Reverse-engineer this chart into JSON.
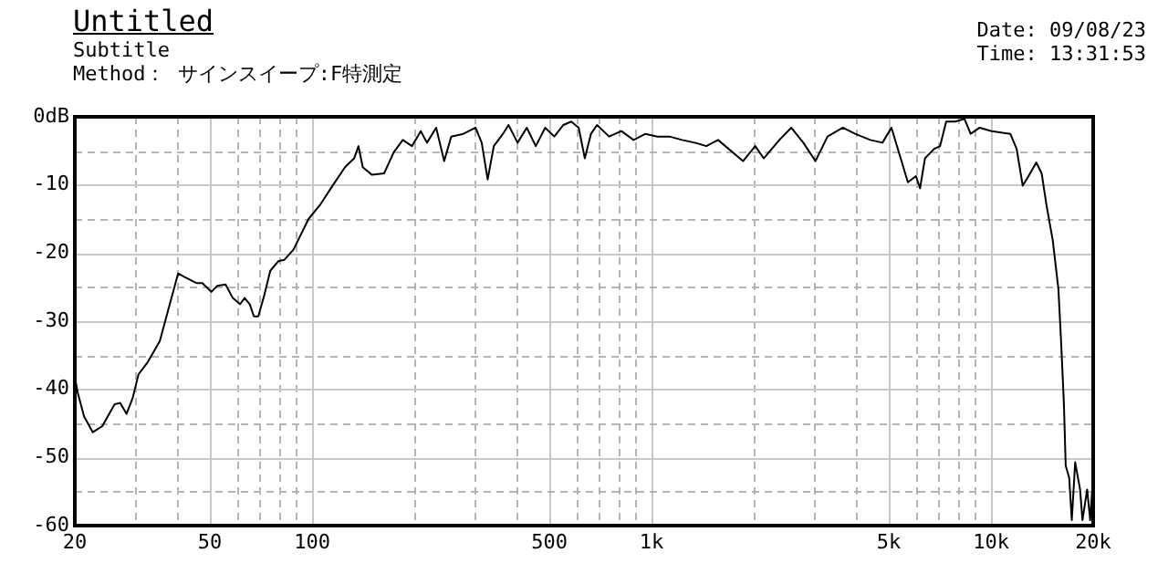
{
  "chart_data": {
    "type": "line",
    "title": "Untitled",
    "subtitle": "Subtitle",
    "annotations": [
      "Method： サインスイープ:F特測定",
      "Date: 09/08/23",
      "Time: 13:31:53"
    ],
    "log": "x",
    "grid": true,
    "legend": false,
    "marker": "none",
    "line_style": "solid",
    "xlim": [
      20,
      20000
    ],
    "xticks": [
      20,
      {
        "value": 30,
        "label": null
      },
      {
        "value": 40,
        "label": null
      },
      50,
      {
        "value": 60,
        "label": null
      },
      {
        "value": 70,
        "label": null
      },
      {
        "value": 80,
        "label": null
      },
      {
        "value": 90,
        "label": null
      },
      100,
      {
        "value": 200,
        "label": null
      },
      {
        "value": 300,
        "label": null
      },
      {
        "value": 400,
        "label": null
      },
      500,
      {
        "value": 600,
        "label": null
      },
      {
        "value": 700,
        "label": null
      },
      {
        "value": 800,
        "label": null
      },
      {
        "value": 900,
        "label": null
      },
      {
        "value": 1000,
        "label": "1k"
      },
      {
        "value": 2000,
        "label": null
      },
      {
        "value": 3000,
        "label": null
      },
      {
        "value": 4000,
        "label": null
      },
      {
        "value": 5000,
        "label": "5k"
      },
      {
        "value": 6000,
        "label": null
      },
      {
        "value": 7000,
        "label": null
      },
      {
        "value": 8000,
        "label": null
      },
      {
        "value": 9000,
        "label": null
      },
      {
        "value": 10000,
        "label": "10k"
      },
      {
        "value": 20000,
        "label": "20k"
      }
    ],
    "ylim": [
      -60,
      0
    ],
    "yticks": [
      {
        "value": 0,
        "label": "0dB"
      },
      {
        "value": -5,
        "label": null
      },
      -10,
      {
        "value": -15,
        "label": null
      },
      -20,
      {
        "value": -25,
        "label": null
      },
      -30,
      {
        "value": -35,
        "label": null
      },
      -40,
      {
        "value": -45,
        "label": null
      },
      -50,
      {
        "value": -55,
        "label": null
      },
      -60
    ],
    "series": [
      {
        "color": "#000000",
        "x": [
          20,
          20.4,
          21.3,
          22.6,
          24.1,
          26.2,
          27.2,
          28.4,
          29.6,
          30.8,
          32.8,
          35.6,
          37.9,
          40.3,
          42,
          45.6,
          47.5,
          50.5,
          52.6,
          55.6,
          58.4,
          61.3,
          63.3,
          65.5,
          67.4,
          69.4,
          72.3,
          75.3,
          79.5,
          82.8,
          88.1,
          93.7,
          97.6,
          106,
          115,
          125,
          133,
          137,
          141,
          150,
          163,
          174,
          185,
          197,
          209,
          218,
          232,
          245,
          257,
          279,
          303,
          316,
          329,
          343,
          365,
          379,
          403,
          429,
          456,
          486,
          517,
          550,
          580,
          610,
          636,
          663,
          691,
          750,
          815,
          885,
          960,
          1040,
          1130,
          1230,
          1340,
          1450,
          1570,
          1860,
          2020,
          2140,
          2380,
          2580,
          2800,
          3040,
          3300,
          3660,
          3980,
          4410,
          4790,
          5090,
          5420,
          5690,
          6010,
          6180,
          6390,
          6800,
          7080,
          7380,
          7850,
          8350,
          8710,
          9260,
          10050,
          11400,
          11900,
          12400,
          12900,
          13600,
          14100,
          14600,
          15200,
          15800,
          16100,
          16400,
          16600,
          17000,
          17300,
          17700,
          18300,
          18600,
          19200,
          19600,
          19900
        ],
        "values": [
          -38.2,
          -40.5,
          -44,
          -46.3,
          -45.4,
          -42.2,
          -42,
          -43.6,
          -41.3,
          -37.8,
          -36,
          -32.9,
          -27.9,
          -23,
          -23.5,
          -24.4,
          -24.4,
          -25.7,
          -24.8,
          -24.6,
          -26.6,
          -27.5,
          -26.6,
          -27.5,
          -29.3,
          -29.3,
          -26.2,
          -22.6,
          -21.2,
          -21,
          -19.5,
          -16.8,
          -15,
          -12.8,
          -10.1,
          -7.4,
          -6.1,
          -4.3,
          -7.4,
          -8.5,
          -8.3,
          -5.2,
          -3.4,
          -4.3,
          -2.1,
          -3.8,
          -1.6,
          -6.5,
          -2.9,
          -2.5,
          -1.6,
          -3.8,
          -9.2,
          -4.3,
          -2.5,
          -1.2,
          -3.8,
          -1.6,
          -4.3,
          -1.6,
          -2.9,
          -1.2,
          -0.7,
          -1.6,
          -6.1,
          -2.5,
          -1.2,
          -2.9,
          -2.1,
          -3.4,
          -2.5,
          -2.9,
          -2.9,
          -3.4,
          -3.8,
          -4.3,
          -3.4,
          -6.5,
          -4.3,
          -6.1,
          -3.4,
          -1.6,
          -3.8,
          -6.5,
          -2.9,
          -1.6,
          -2.5,
          -3.4,
          -3.8,
          -1.6,
          -6.1,
          -9.6,
          -8.7,
          -10.5,
          -6.1,
          -4.7,
          -4.3,
          -0.7,
          -0.7,
          -0.3,
          -2.5,
          -1.6,
          -2.1,
          -2.5,
          -4.7,
          -10.1,
          -8.7,
          -6.7,
          -8.3,
          -13.2,
          -18.1,
          -25.3,
          -33.3,
          -42.2,
          -51.2,
          -53,
          -59.2,
          -50.7,
          -54.7,
          -59.2,
          -54.7,
          -59.2,
          -54.3
        ]
      }
    ]
  }
}
